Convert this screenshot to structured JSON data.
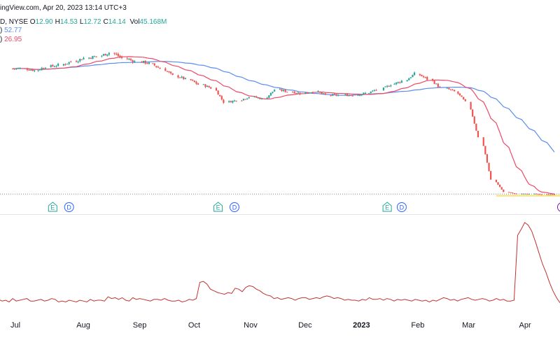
{
  "header": {
    "source_line": "ingView.com, Apr 20, 2023 13:14 UTC+3",
    "symbol_tail": "D, NYSE",
    "ohlc": [
      {
        "label": "O",
        "value": "12.90"
      },
      {
        "label": "H",
        "value": "14.53"
      },
      {
        "label": "L",
        "value": "12.72"
      },
      {
        "label": "C",
        "value": "14.14"
      }
    ],
    "volume_label": "Vol",
    "volume_value": "45.168M",
    "ma_slow": {
      "suffix": ")",
      "value": "52.77"
    },
    "ma_fast": {
      "suffix": ")",
      "value": "26.95"
    }
  },
  "colors": {
    "up": "#26a69a",
    "down": "#ef5350",
    "ma_slow": "#5b8cf0",
    "ma_fast": "#ec4a68",
    "oscillator": "#c2332f",
    "grid_text": "#131722",
    "earnings": "#26a69a",
    "dividend": "#2962ff"
  },
  "chart_data": [
    {
      "type": "candlestick",
      "x_ticks": [
        "Jul",
        "Aug",
        "Sep",
        "Oct",
        "Nov",
        "Dec",
        "2023",
        "Feb",
        "Mar",
        "Apr"
      ],
      "ylim": [
        0,
        100
      ],
      "series": [
        {
          "name": "",
          "kind": "candles",
          "values": [
            {
              "t": "2022-06-27",
              "c": 73
            },
            {
              "t": "2022-07-05",
              "c": 72
            },
            {
              "t": "2022-07-11",
              "c": 74
            },
            {
              "t": "2022-07-18",
              "c": 75
            },
            {
              "t": "2022-07-25",
              "c": 77
            },
            {
              "t": "2022-08-01",
              "c": 79
            },
            {
              "t": "2022-08-08",
              "c": 80
            },
            {
              "t": "2022-08-15",
              "c": 82
            },
            {
              "t": "2022-08-22",
              "c": 79
            },
            {
              "t": "2022-08-29",
              "c": 77
            },
            {
              "t": "2022-09-06",
              "c": 76
            },
            {
              "t": "2022-09-12",
              "c": 73
            },
            {
              "t": "2022-09-19",
              "c": 69
            },
            {
              "t": "2022-09-26",
              "c": 67
            },
            {
              "t": "2022-10-03",
              "c": 64
            },
            {
              "t": "2022-10-10",
              "c": 62
            },
            {
              "t": "2022-10-17",
              "c": 54
            },
            {
              "t": "2022-10-24",
              "c": 55
            },
            {
              "t": "2022-10-31",
              "c": 57
            },
            {
              "t": "2022-11-07",
              "c": 56
            },
            {
              "t": "2022-11-14",
              "c": 61
            },
            {
              "t": "2022-11-21",
              "c": 60
            },
            {
              "t": "2022-11-28",
              "c": 59
            },
            {
              "t": "2022-12-05",
              "c": 60
            },
            {
              "t": "2022-12-12",
              "c": 58
            },
            {
              "t": "2022-12-19",
              "c": 58
            },
            {
              "t": "2022-12-27",
              "c": 58
            },
            {
              "t": "2023-01-03",
              "c": 59
            },
            {
              "t": "2023-01-09",
              "c": 61
            },
            {
              "t": "2023-01-17",
              "c": 64
            },
            {
              "t": "2023-01-23",
              "c": 66
            },
            {
              "t": "2023-01-30",
              "c": 70
            },
            {
              "t": "2023-02-06",
              "c": 67
            },
            {
              "t": "2023-02-13",
              "c": 62
            },
            {
              "t": "2023-02-21",
              "c": 60
            },
            {
              "t": "2023-02-27",
              "c": 54
            },
            {
              "t": "2023-03-06",
              "c": 34
            },
            {
              "t": "2023-03-13",
              "c": 10
            },
            {
              "t": "2023-03-20",
              "c": 3
            },
            {
              "t": "2023-03-27",
              "c": 2
            },
            {
              "t": "2023-04-03",
              "c": 2
            },
            {
              "t": "2023-04-10",
              "c": 1.8
            },
            {
              "t": "2023-04-17",
              "c": 1.5
            }
          ]
        },
        {
          "name": "",
          "kind": "ma_slow",
          "last": 52.77
        },
        {
          "name": "",
          "kind": "ma_fast",
          "last": 26.95
        }
      ],
      "markers": [
        {
          "label": "E",
          "x": "2022-07-19"
        },
        {
          "label": "D",
          "x": "2022-07-28"
        },
        {
          "label": "E",
          "x": "2022-10-18"
        },
        {
          "label": "D",
          "x": "2022-10-27"
        },
        {
          "label": "E",
          "x": "2023-01-19"
        },
        {
          "label": "D",
          "x": "2023-01-27"
        }
      ]
    },
    {
      "type": "line",
      "name": "",
      "note": "oscillator lower pane, relative level 0-100",
      "ylim": [
        0,
        100
      ],
      "values": [
        10,
        8,
        9,
        7,
        11,
        8,
        9,
        10,
        11,
        8,
        8,
        9,
        10,
        8,
        9,
        11,
        10,
        7,
        8,
        7,
        9,
        8,
        7,
        9,
        8,
        7,
        10,
        8,
        9,
        9,
        8,
        13,
        11,
        12,
        10,
        12,
        9,
        8,
        12,
        10,
        11,
        10,
        9,
        8,
        10,
        10,
        9,
        11,
        9,
        8,
        8,
        9,
        7,
        8,
        10,
        9,
        11,
        30,
        31,
        28,
        22,
        20,
        18,
        17,
        16,
        18,
        17,
        23,
        22,
        19,
        24,
        26,
        25,
        22,
        20,
        17,
        15,
        14,
        11,
        12,
        10,
        11,
        12,
        11,
        9,
        11,
        12,
        12,
        10,
        11,
        12,
        11,
        13,
        14,
        13,
        11,
        12,
        11,
        9,
        10,
        9,
        9,
        8,
        10,
        9,
        12,
        10,
        10,
        11,
        9,
        11,
        10,
        8,
        10,
        9,
        10,
        9,
        8,
        10,
        9,
        8,
        9,
        7,
        9,
        8,
        10,
        12,
        11,
        9,
        10,
        8,
        10,
        11,
        12,
        10,
        9,
        10,
        11,
        10,
        8,
        9,
        11,
        9,
        10,
        8,
        8,
        9,
        85,
        92,
        100,
        97,
        90,
        78,
        65,
        52,
        42,
        30,
        20,
        12,
        6
      ]
    }
  ]
}
